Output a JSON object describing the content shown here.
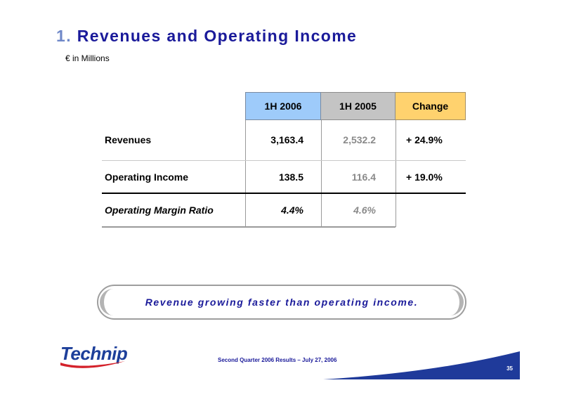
{
  "slide": {
    "title_number": "1.",
    "title_text": "Revenues and Operating Income",
    "subtitle": "€ in Millions"
  },
  "table": {
    "headers": [
      "1H 2006",
      "1H 2005",
      "Change"
    ],
    "rows": [
      {
        "label": "Revenues",
        "v2006": "3,163.4",
        "v2005": "2,532.2",
        "change": "+ 24.9%"
      },
      {
        "label": "Operating Income",
        "v2006": "138.5",
        "v2005": "116.4",
        "change": "+ 19.0%"
      },
      {
        "label": "Operating Margin Ratio",
        "v2006": "4.4%",
        "v2005": "4.6%",
        "change": ""
      }
    ]
  },
  "banner": {
    "text": "Revenue growing faster than operating income."
  },
  "footer": {
    "logo_text": "Technip",
    "caption": "Second Quarter 2006 Results – July 27, 2006",
    "page_number": "35"
  },
  "colors": {
    "title_blue": "#1a1a9a",
    "header_2006": "#9ecbfa",
    "header_2005": "#c4c4c4",
    "header_change": "#ffd26e"
  }
}
